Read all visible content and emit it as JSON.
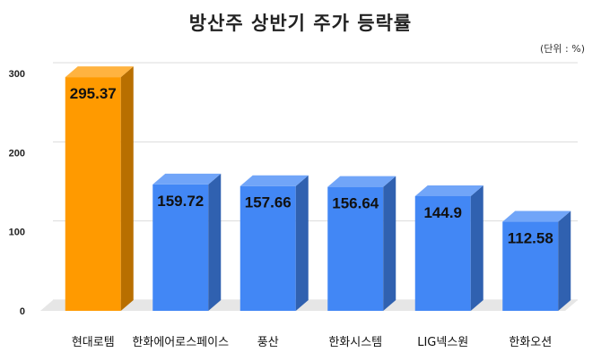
{
  "chart_data": {
    "type": "bar",
    "title": "방산주 상반기 주가 등락률",
    "unit": "(단위 : %)",
    "categories": [
      "현대로템",
      "한화에어로스페이스",
      "풍산",
      "한화시스템",
      "LIG넥스원",
      "한화오션"
    ],
    "values": [
      295.37,
      159.72,
      157.66,
      156.64,
      144.9,
      112.58
    ],
    "value_labels": [
      "295.37",
      "159.72",
      "157.66",
      "156.64",
      "144.9",
      "112.58"
    ],
    "ylim": [
      0,
      300
    ],
    "yticks": [
      "0",
      "100",
      "200",
      "300"
    ],
    "grid": true,
    "style": "3d-bar",
    "colors": {
      "highlight": "#ff9a00",
      "default": "#4287f5"
    }
  }
}
